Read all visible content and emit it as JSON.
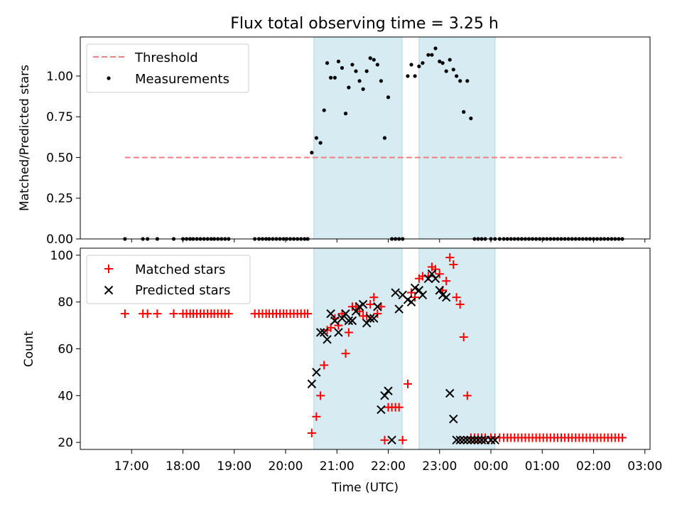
{
  "chart_data": [
    {
      "type": "scatter",
      "title": "Flux total observing time = 3.25 h",
      "ylabel": "Matched/Predicted stars",
      "xlabel": "",
      "ylim": [
        0,
        1.24
      ],
      "yticks": [
        0,
        0.25,
        0.5,
        0.75,
        1.0
      ],
      "ytick_labels": [
        "0.00",
        "0.25",
        "0.50",
        "0.75",
        "1.00"
      ],
      "shaded_regions": [
        {
          "start": 20.55,
          "end": 22.27
        },
        {
          "start": 22.6,
          "end": 24.08
        }
      ],
      "legend": {
        "position": "upper-left",
        "entries": [
          "Threshold",
          "Measurements"
        ]
      },
      "threshold": {
        "name": "Threshold",
        "y": 0.5,
        "x_start": 16.87,
        "x_end": 26.55,
        "color": "#f08080"
      },
      "series": [
        {
          "name": "Measurements",
          "color": "#000000",
          "x": [
            16.87,
            17.22,
            17.31,
            17.5,
            17.82,
            18.0,
            18.07,
            18.14,
            18.2,
            18.27,
            18.34,
            18.41,
            18.48,
            18.55,
            18.61,
            18.68,
            18.75,
            18.82,
            18.89,
            19.4,
            19.48,
            19.55,
            19.62,
            19.68,
            19.75,
            19.82,
            19.89,
            19.96,
            20.02,
            20.09,
            20.16,
            20.23,
            20.3,
            20.37,
            20.43,
            20.51,
            20.6,
            20.68,
            20.75,
            20.81,
            20.88,
            20.96,
            21.03,
            21.1,
            21.17,
            21.23,
            21.3,
            21.37,
            21.44,
            21.51,
            21.58,
            21.65,
            21.72,
            21.79,
            21.86,
            21.93,
            22.0,
            22.07,
            22.14,
            22.21,
            22.28,
            22.38,
            22.45,
            22.52,
            22.6,
            22.67,
            22.78,
            22.85,
            22.92,
            23.0,
            23.06,
            23.13,
            23.2,
            23.27,
            23.33,
            23.4,
            23.47,
            23.54,
            23.61,
            23.68,
            23.75,
            23.82,
            23.89,
            24.0,
            24.08,
            24.17,
            24.25,
            24.32,
            24.39,
            24.46,
            24.53,
            24.6,
            24.67,
            24.74,
            24.81,
            24.88,
            24.95,
            25.02,
            25.09,
            25.16,
            25.23,
            25.3,
            25.37,
            25.44,
            25.51,
            25.58,
            25.65,
            25.72,
            25.79,
            25.86,
            25.93,
            26.0,
            26.07,
            26.14,
            26.21,
            26.28,
            26.35,
            26.42,
            26.49,
            26.56
          ],
          "y": [
            0,
            0,
            0,
            0,
            0,
            0,
            0,
            0,
            0,
            0,
            0,
            0,
            0,
            0,
            0,
            0,
            0,
            0,
            0,
            0,
            0,
            0,
            0,
            0,
            0,
            0,
            0,
            0,
            0,
            0,
            0,
            0,
            0,
            0,
            0,
            0.53,
            0.62,
            0.59,
            0.79,
            1.08,
            0.99,
            0.99,
            1.09,
            1.05,
            0.77,
            0.93,
            1.07,
            1.03,
            0.97,
            0.92,
            1.03,
            1.11,
            1.1,
            1.07,
            0.97,
            0.62,
            0.87,
            0,
            0,
            0,
            0,
            1.0,
            1.07,
            1.0,
            1.06,
            1.08,
            1.13,
            1.13,
            1.17,
            1.09,
            1.08,
            1.03,
            1.1,
            1.04,
            1.0,
            0.97,
            0.78,
            0.97,
            0.74,
            0,
            0,
            0,
            0,
            0,
            0,
            0,
            0,
            0,
            0,
            0,
            0,
            0,
            0,
            0,
            0,
            0,
            0,
            0,
            0,
            0,
            0,
            0,
            0,
            0,
            0,
            0,
            0,
            0,
            0,
            0,
            0,
            0,
            0,
            0,
            0,
            0,
            0,
            0,
            0,
            0
          ]
        }
      ]
    },
    {
      "type": "scatter",
      "title": "",
      "ylabel": "Count",
      "xlabel": "Time (UTC)",
      "ylim": [
        17,
        103
      ],
      "yticks": [
        20,
        40,
        60,
        80,
        100
      ],
      "ytick_labels": [
        "20",
        "40",
        "60",
        "80",
        "100"
      ],
      "xlim": [
        16.0,
        27.1
      ],
      "xticks": [
        17,
        18,
        19,
        20,
        21,
        22,
        23,
        24,
        25,
        26,
        27
      ],
      "xtick_labels": [
        "17:00",
        "18:00",
        "19:00",
        "20:00",
        "21:00",
        "22:00",
        "23:00",
        "00:00",
        "01:00",
        "02:00",
        "03:00"
      ],
      "shaded_regions": [
        {
          "start": 20.55,
          "end": 22.27
        },
        {
          "start": 22.6,
          "end": 24.08
        }
      ],
      "legend": {
        "position": "upper-left",
        "entries": [
          "Matched stars",
          "Predicted stars"
        ]
      },
      "series": [
        {
          "name": "Matched stars",
          "color": "#ff0000",
          "marker": "plus",
          "x": [
            16.87,
            17.22,
            17.31,
            17.5,
            17.82,
            18.0,
            18.07,
            18.14,
            18.2,
            18.27,
            18.34,
            18.41,
            18.48,
            18.55,
            18.61,
            18.68,
            18.75,
            18.82,
            18.89,
            19.4,
            19.48,
            19.55,
            19.62,
            19.68,
            19.75,
            19.82,
            19.89,
            19.96,
            20.02,
            20.09,
            20.16,
            20.23,
            20.3,
            20.37,
            20.43,
            20.51,
            20.6,
            20.68,
            20.75,
            20.81,
            20.88,
            20.96,
            21.03,
            21.1,
            21.17,
            21.23,
            21.3,
            21.37,
            21.44,
            21.51,
            21.58,
            21.65,
            21.72,
            21.79,
            21.86,
            21.93,
            22.0,
            22.07,
            22.14,
            22.21,
            22.28,
            22.38,
            22.45,
            22.52,
            22.6,
            22.67,
            22.78,
            22.85,
            22.92,
            23.0,
            23.06,
            23.13,
            23.2,
            23.27,
            23.33,
            23.4,
            23.47,
            23.54,
            23.61,
            23.68,
            23.75,
            23.82,
            23.89,
            24.0,
            24.08,
            24.17,
            24.25,
            24.32,
            24.39,
            24.46,
            24.53,
            24.6,
            24.67,
            24.74,
            24.81,
            24.88,
            24.95,
            25.02,
            25.09,
            25.16,
            25.23,
            25.3,
            25.37,
            25.44,
            25.51,
            25.58,
            25.65,
            25.72,
            25.79,
            25.86,
            25.93,
            26.0,
            26.07,
            26.14,
            26.21,
            26.28,
            26.35,
            26.42,
            26.49,
            26.56
          ],
          "y": [
            75,
            75,
            75,
            75,
            75,
            75,
            75,
            75,
            75,
            75,
            75,
            75,
            75,
            75,
            75,
            75,
            75,
            75,
            75,
            75,
            75,
            75,
            75,
            75,
            75,
            75,
            75,
            75,
            75,
            75,
            75,
            75,
            75,
            75,
            75,
            24,
            31,
            40,
            53,
            68,
            69,
            73,
            70,
            75,
            58,
            67,
            78,
            78,
            76,
            74,
            74,
            79,
            82,
            75,
            78,
            21,
            35,
            35,
            35,
            35,
            21,
            45,
            84,
            82,
            90,
            91,
            91,
            95,
            94,
            92,
            85,
            89,
            99,
            96,
            82,
            79,
            65,
            40,
            22,
            22,
            22,
            22,
            22,
            22,
            22,
            22,
            22,
            22,
            22,
            22,
            22,
            22,
            22,
            22,
            22,
            22,
            22,
            22,
            22,
            22,
            22,
            22,
            22,
            22,
            22,
            22,
            22,
            22,
            22,
            22,
            22,
            22,
            22,
            22,
            22,
            22,
            22,
            22,
            22,
            22
          ]
        },
        {
          "name": "Predicted stars",
          "color": "#000000",
          "marker": "x",
          "x": [
            20.51,
            20.6,
            20.68,
            20.75,
            20.81,
            20.88,
            20.96,
            21.03,
            21.1,
            21.17,
            21.23,
            21.3,
            21.37,
            21.44,
            21.51,
            21.58,
            21.65,
            21.72,
            21.79,
            21.86,
            21.93,
            22.0,
            22.07,
            22.14,
            22.21,
            22.28,
            22.38,
            22.45,
            22.52,
            22.6,
            22.67,
            22.78,
            22.85,
            22.92,
            23.0,
            23.06,
            23.13,
            23.2,
            23.27,
            23.33,
            23.4,
            23.47,
            23.54,
            23.61,
            23.68,
            23.75,
            23.82,
            23.89,
            24.0,
            24.08
          ],
          "y": [
            45,
            50,
            67,
            67,
            64,
            75,
            72,
            67,
            73,
            75,
            72,
            72,
            76,
            78,
            79,
            71,
            73,
            73,
            78,
            34,
            40,
            42,
            21,
            84,
            77,
            83,
            81,
            80,
            86,
            85,
            83,
            90,
            92,
            90,
            85,
            83,
            82,
            41,
            30,
            21,
            21,
            21,
            21,
            21,
            21,
            21,
            21,
            21,
            21,
            21
          ]
        }
      ]
    }
  ]
}
